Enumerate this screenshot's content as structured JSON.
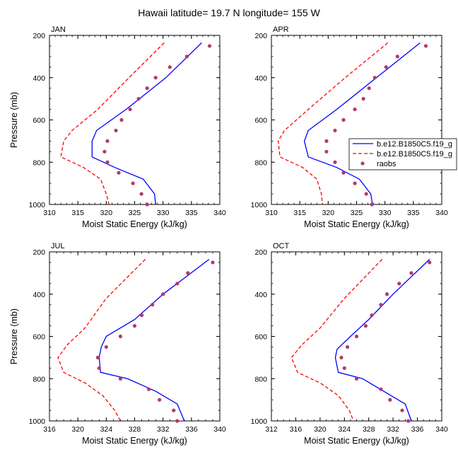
{
  "figure": {
    "title": "Hawaii  latitude= 19.7 N longitude= 155 W"
  },
  "legend": {
    "entries": [
      {
        "label": "b.e12.B1850C5.f19_g",
        "color": "#0000ff",
        "style": "solid"
      },
      {
        "label": "b.e12.B1850C5.f19_g",
        "color": "#ff0000",
        "style": "dashed"
      },
      {
        "label": "raobs",
        "color": "#b03a6e",
        "style": "marker"
      }
    ]
  },
  "chart_data": [
    {
      "type": "line",
      "panel_label": "JAN",
      "xlabel": "Moist Static Energy (kJ/kg)",
      "ylabel": "Pressure (mb)",
      "xlim": [
        310,
        340
      ],
      "ylim": [
        1000,
        200
      ],
      "xticks": [
        310,
        315,
        320,
        325,
        330,
        335,
        340
      ],
      "yticks": [
        200,
        400,
        600,
        800,
        1000
      ],
      "series": [
        {
          "color": "#0000ff",
          "style": "solid",
          "points": [
            [
              336.8,
              235
            ],
            [
              330.5,
              400
            ],
            [
              323.5,
              550
            ],
            [
              318.3,
              650
            ],
            [
              317.5,
              700
            ],
            [
              317.5,
              775
            ],
            [
              321.5,
              825
            ],
            [
              326.5,
              880
            ],
            [
              328.5,
              950
            ],
            [
              328.7,
              1000
            ]
          ]
        },
        {
          "color": "#ff0000",
          "style": "dashed",
          "points": [
            [
              330.2,
              235
            ],
            [
              324.0,
              400
            ],
            [
              318.5,
              550
            ],
            [
              314.0,
              650
            ],
            [
              312.5,
              700
            ],
            [
              312.0,
              775
            ],
            [
              316.0,
              825
            ],
            [
              319.0,
              880
            ],
            [
              320.0,
              950
            ],
            [
              320.5,
              1000
            ]
          ]
        },
        {
          "color": "#b03a6e",
          "style": "marker",
          "points": [
            [
              338.2,
              250
            ],
            [
              334.2,
              300
            ],
            [
              331.2,
              350
            ],
            [
              328.7,
              400
            ],
            [
              327.2,
              450
            ],
            [
              325.7,
              500
            ],
            [
              324.2,
              550
            ],
            [
              322.7,
              600
            ],
            [
              321.7,
              650
            ],
            [
              320.2,
              700
            ],
            [
              319.7,
              750
            ],
            [
              320.2,
              800
            ],
            [
              322.2,
              850
            ],
            [
              324.7,
              900
            ],
            [
              326.2,
              950
            ],
            [
              327.2,
              1000
            ]
          ]
        }
      ]
    },
    {
      "type": "line",
      "panel_label": "APR",
      "xlabel": "Moist Static Energy (kJ/kg)",
      "ylabel": "",
      "xlim": [
        310,
        340
      ],
      "ylim": [
        1000,
        200
      ],
      "xticks": [
        310,
        315,
        320,
        325,
        330,
        335,
        340
      ],
      "yticks": [
        200,
        400,
        600,
        800,
        1000
      ],
      "series": [
        {
          "color": "#0000ff",
          "style": "solid",
          "points": [
            [
              336.2,
              235
            ],
            [
              328.5,
              400
            ],
            [
              321.5,
              550
            ],
            [
              316.5,
              650
            ],
            [
              315.8,
              700
            ],
            [
              316.5,
              775
            ],
            [
              321.5,
              825
            ],
            [
              325.5,
              880
            ],
            [
              327.5,
              950
            ],
            [
              327.8,
              1000
            ]
          ]
        },
        {
          "color": "#ff0000",
          "style": "dashed",
          "points": [
            [
              330.5,
              235
            ],
            [
              323.0,
              400
            ],
            [
              316.5,
              550
            ],
            [
              312.3,
              650
            ],
            [
              311.2,
              700
            ],
            [
              311.5,
              775
            ],
            [
              315.5,
              825
            ],
            [
              318.0,
              880
            ],
            [
              318.8,
              950
            ],
            [
              319.0,
              1000
            ]
          ]
        },
        {
          "color": "#b03a6e",
          "style": "marker",
          "points": [
            [
              337.2,
              250
            ],
            [
              332.2,
              300
            ],
            [
              330.2,
              350
            ],
            [
              328.2,
              400
            ],
            [
              327.2,
              450
            ],
            [
              326.2,
              500
            ],
            [
              324.7,
              550
            ],
            [
              322.7,
              600
            ],
            [
              321.2,
              650
            ],
            [
              319.7,
              700
            ],
            [
              319.7,
              750
            ],
            [
              321.2,
              800
            ],
            [
              322.7,
              850
            ],
            [
              324.7,
              900
            ],
            [
              326.7,
              950
            ],
            [
              327.7,
              1000
            ]
          ]
        }
      ]
    },
    {
      "type": "line",
      "panel_label": "JUL",
      "xlabel": "Moist Static Energy (kJ/kg)",
      "ylabel": "Pressure (mb)",
      "xlim": [
        316,
        340
      ],
      "ylim": [
        1000,
        200
      ],
      "xticks": [
        316,
        320,
        324,
        328,
        332,
        336,
        340
      ],
      "yticks": [
        200,
        400,
        600,
        800,
        1000
      ],
      "series": [
        {
          "color": "#0000ff",
          "style": "solid",
          "points": [
            [
              338.5,
              235
            ],
            [
              332.0,
              400
            ],
            [
              328.0,
              520
            ],
            [
              324.0,
              600
            ],
            [
              323.3,
              650
            ],
            [
              323.0,
              700
            ],
            [
              323.2,
              770
            ],
            [
              327.0,
              800
            ],
            [
              331.0,
              860
            ],
            [
              334.0,
              920
            ],
            [
              335.0,
              1000
            ]
          ]
        },
        {
          "color": "#ff0000",
          "style": "dashed",
          "points": [
            [
              329.5,
              235
            ],
            [
              324.0,
              420
            ],
            [
              321.0,
              560
            ],
            [
              318.5,
              640
            ],
            [
              317.2,
              700
            ],
            [
              318.0,
              770
            ],
            [
              321.0,
              820
            ],
            [
              323.5,
              880
            ],
            [
              325.2,
              950
            ],
            [
              326.0,
              1000
            ]
          ]
        },
        {
          "color": "#b03a6e",
          "style": "marker",
          "points": [
            [
              339.0,
              250
            ],
            [
              335.5,
              300
            ],
            [
              334.0,
              350
            ],
            [
              332.0,
              400
            ],
            [
              330.5,
              450
            ],
            [
              329.0,
              500
            ],
            [
              328.0,
              550
            ],
            [
              326.0,
              600
            ],
            [
              324.0,
              650
            ],
            [
              322.8,
              700
            ],
            [
              323.0,
              750
            ],
            [
              326.0,
              800
            ],
            [
              330.0,
              850
            ],
            [
              331.5,
              900
            ],
            [
              333.5,
              950
            ],
            [
              334.0,
              1000
            ]
          ]
        }
      ]
    },
    {
      "type": "line",
      "panel_label": "OCT",
      "xlabel": "Moist Static Energy (kJ/kg)",
      "ylabel": "",
      "xlim": [
        312,
        340
      ],
      "ylim": [
        1000,
        200
      ],
      "xticks": [
        312,
        316,
        320,
        324,
        328,
        332,
        336,
        340
      ],
      "yticks": [
        200,
        400,
        600,
        800,
        1000
      ],
      "series": [
        {
          "color": "#0000ff",
          "style": "solid",
          "points": [
            [
              338.0,
              235
            ],
            [
              332.0,
              400
            ],
            [
              328.0,
              520
            ],
            [
              325.0,
              600
            ],
            [
              322.8,
              660
            ],
            [
              322.5,
              700
            ],
            [
              323.0,
              770
            ],
            [
              327.0,
              800
            ],
            [
              330.5,
              860
            ],
            [
              334.0,
              920
            ],
            [
              335.0,
              1000
            ]
          ]
        },
        {
          "color": "#ff0000",
          "style": "dashed",
          "points": [
            [
              330.2,
              235
            ],
            [
              324.0,
              420
            ],
            [
              320.0,
              560
            ],
            [
              317.0,
              640
            ],
            [
              315.3,
              700
            ],
            [
              316.3,
              770
            ],
            [
              320.0,
              820
            ],
            [
              323.0,
              880
            ],
            [
              324.8,
              950
            ],
            [
              325.5,
              1000
            ]
          ]
        },
        {
          "color": "#b03a6e",
          "style": "marker",
          "points": [
            [
              338.0,
              250
            ],
            [
              335.0,
              300
            ],
            [
              333.0,
              350
            ],
            [
              331.0,
              400
            ],
            [
              330.0,
              450
            ],
            [
              328.5,
              500
            ],
            [
              327.5,
              550
            ],
            [
              326.0,
              600
            ],
            [
              324.5,
              650
            ],
            [
              323.5,
              700
            ],
            [
              324.0,
              750
            ],
            [
              326.0,
              800
            ],
            [
              330.0,
              850
            ],
            [
              331.5,
              900
            ],
            [
              333.5,
              950
            ],
            [
              334.5,
              1000
            ]
          ]
        }
      ]
    }
  ]
}
